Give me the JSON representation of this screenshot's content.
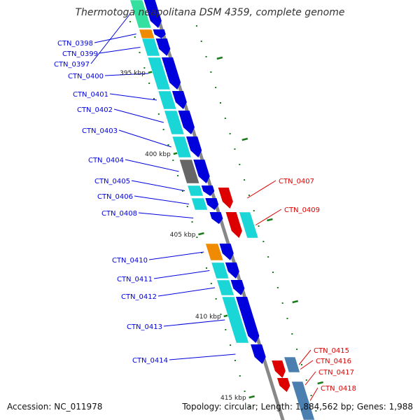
{
  "title": "Thermotoga neapolitana DSM 4359, complete genome",
  "footer": {
    "accession": "Accession: NC_011978",
    "stats": "Topology: circular; Length: 1,884,562 bp; Genes: 1,988"
  },
  "colors": {
    "forward_strand": "#0000dd",
    "reverse_strand": "#dd0000",
    "cog_cyan": "#1ad6d6",
    "cog_orange": "#f08a00",
    "cog_gray": "#666666",
    "cog_steelblue": "#4a7fb0",
    "cog_mint": "#33e0a0",
    "backbone": "#888888",
    "tick": "#1a7a1a"
  },
  "kbp_markers": [
    "395 kbp",
    "400 kbp",
    "405 kbp",
    "410 kbp",
    "415 kbp"
  ],
  "genes_forward": [
    {
      "label": "CTN_0397",
      "cog": "mint"
    },
    {
      "label": "CTN_0398",
      "cog": "orange"
    },
    {
      "label": "CTN_0399",
      "cog": "cyan"
    },
    {
      "label": "CTN_0400",
      "cog": "cyan"
    },
    {
      "label": "CTN_0401",
      "cog": "cyan"
    },
    {
      "label": "CTN_0402",
      "cog": "cyan"
    },
    {
      "label": "CTN_0403",
      "cog": "cyan"
    },
    {
      "label": "CTN_0404",
      "cog": "gray"
    },
    {
      "label": "CTN_0405",
      "cog": "cyan"
    },
    {
      "label": "CTN_0406",
      "cog": "cyan"
    },
    {
      "label": "CTN_0408",
      "cog": "none"
    },
    {
      "label": "CTN_0410",
      "cog": "orange"
    },
    {
      "label": "CTN_0411",
      "cog": "cyan"
    },
    {
      "label": "CTN_0412",
      "cog": "cyan"
    },
    {
      "label": "CTN_0413",
      "cog": "cyan"
    },
    {
      "label": "CTN_0414",
      "cog": "none"
    }
  ],
  "genes_reverse": [
    {
      "label": "CTN_0407",
      "cog": "none"
    },
    {
      "label": "CTN_0409",
      "cog": "cyan"
    },
    {
      "label": "CTN_0415",
      "cog": "steelblue"
    },
    {
      "label": "CTN_0416",
      "cog": "none"
    },
    {
      "label": "CTN_0417",
      "cog": "none"
    },
    {
      "label": "CTN_0418",
      "cog": "steelblue"
    }
  ]
}
